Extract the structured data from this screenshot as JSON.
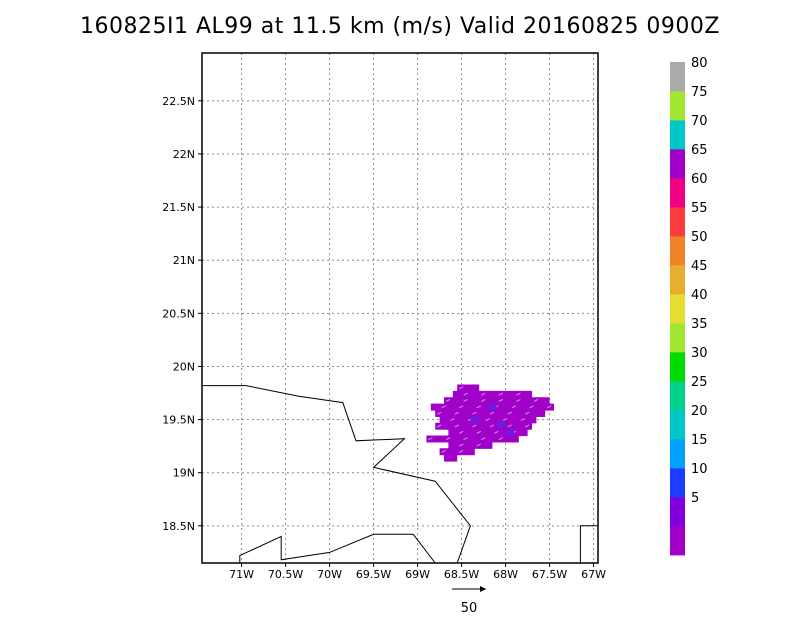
{
  "title": "160825I1 AL99 at 11.5 km (m/s) Valid 20160825 0900Z",
  "map": {
    "lon_range": [
      -71.45,
      -66.95
    ],
    "lat_range": [
      18.15,
      22.95
    ],
    "lon_ticks": [
      {
        "v": -71,
        "label": "71W"
      },
      {
        "v": -70.5,
        "label": "70.5W"
      },
      {
        "v": -70,
        "label": "70W"
      },
      {
        "v": -69.5,
        "label": "69.5W"
      },
      {
        "v": -69,
        "label": "69W"
      },
      {
        "v": -68.5,
        "label": "68.5W"
      },
      {
        "v": -68,
        "label": "68W"
      },
      {
        "v": -67.5,
        "label": "67.5W"
      },
      {
        "v": -67,
        "label": "67W"
      }
    ],
    "lat_ticks": [
      {
        "v": 18.5,
        "label": "18.5N"
      },
      {
        "v": 19,
        "label": "19N"
      },
      {
        "v": 19.5,
        "label": "19.5N"
      },
      {
        "v": 20,
        "label": "20N"
      },
      {
        "v": 20.5,
        "label": "20.5N"
      },
      {
        "v": 21,
        "label": "21N"
      },
      {
        "v": 21.5,
        "label": "21.5N"
      },
      {
        "v": 22,
        "label": "22N"
      },
      {
        "v": 22.5,
        "label": "22.5N"
      }
    ],
    "coastlines": [
      [
        [
          -71.45,
          19.82
        ],
        [
          -70.95,
          19.82
        ],
        [
          -70.35,
          19.72
        ],
        [
          -69.85,
          19.66
        ],
        [
          -69.7,
          19.3
        ],
        [
          -69.15,
          19.32
        ],
        [
          -69.5,
          19.05
        ],
        [
          -68.8,
          18.92
        ],
        [
          -68.4,
          18.5
        ],
        [
          -68.55,
          18.15
        ]
      ],
      [
        [
          -68.8,
          18.15
        ],
        [
          -69.05,
          18.42
        ],
        [
          -69.5,
          18.42
        ],
        [
          -70.0,
          18.25
        ],
        [
          -70.55,
          18.18
        ],
        [
          -70.55,
          18.4
        ],
        [
          -71.02,
          18.22
        ],
        [
          -71.02,
          18.15
        ]
      ],
      [
        [
          -67.15,
          18.15
        ],
        [
          -67.15,
          18.5
        ],
        [
          -66.95,
          18.5
        ]
      ]
    ],
    "wind_regions": [
      {
        "lat": [
          19.77,
          19.83
        ],
        "lon": [
          -68.55,
          -68.3
        ]
      },
      {
        "lat": [
          19.71,
          19.77
        ],
        "lon": [
          -68.6,
          -67.7
        ]
      },
      {
        "lat": [
          19.65,
          19.71
        ],
        "lon": [
          -68.7,
          -67.5
        ]
      },
      {
        "lat": [
          19.59,
          19.65
        ],
        "lon": [
          -68.85,
          -67.45
        ]
      },
      {
        "lat": [
          19.53,
          19.59
        ],
        "lon": [
          -68.8,
          -67.55
        ]
      },
      {
        "lat": [
          19.47,
          19.53
        ],
        "lon": [
          -68.75,
          -67.65
        ]
      },
      {
        "lat": [
          19.41,
          19.47
        ],
        "lon": [
          -68.8,
          -67.7
        ]
      },
      {
        "lat": [
          19.35,
          19.41
        ],
        "lon": [
          -68.65,
          -67.75
        ]
      },
      {
        "lat": [
          19.29,
          19.35
        ],
        "lon": [
          -68.9,
          -67.85
        ]
      },
      {
        "lat": [
          19.23,
          19.29
        ],
        "lon": [
          -68.65,
          -68.15
        ]
      },
      {
        "lat": [
          19.17,
          19.23
        ],
        "lon": [
          -68.75,
          -68.35
        ]
      },
      {
        "lat": [
          19.11,
          19.17
        ],
        "lon": [
          -68.7,
          -68.55
        ]
      }
    ],
    "wind_color": "#a000c8",
    "accent_color": "#6a1fe0",
    "reference_vector_label": "50"
  },
  "colorbar": {
    "bands": [
      {
        "color": "#a000c8"
      },
      {
        "color": "#8200dc",
        "label": "5"
      },
      {
        "color": "#1e3cff",
        "label": "10"
      },
      {
        "color": "#00a0ff",
        "label": "15"
      },
      {
        "color": "#00c8c8",
        "label": "20"
      },
      {
        "color": "#00d28c",
        "label": "25"
      },
      {
        "color": "#00dc00",
        "label": "30"
      },
      {
        "color": "#a0e632",
        "label": "35"
      },
      {
        "color": "#e6dc32",
        "label": "40"
      },
      {
        "color": "#e6af2d",
        "label": "45"
      },
      {
        "color": "#f08228",
        "label": "50"
      },
      {
        "color": "#fa3c3c",
        "label": "55"
      },
      {
        "color": "#f00082",
        "label": "60"
      },
      {
        "color": "#a000c8",
        "label": "65"
      },
      {
        "color": "#00c8c8",
        "label": "70"
      },
      {
        "color": "#a0e632",
        "label": "75"
      },
      {
        "color": "#aaaaaa",
        "label": "80"
      }
    ]
  }
}
